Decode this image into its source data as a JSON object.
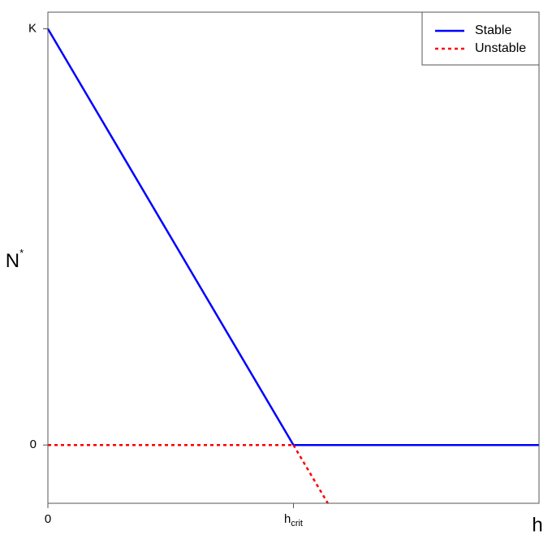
{
  "chart_data": {
    "type": "line",
    "title": "",
    "xlabel": "h",
    "ylabel": "N",
    "ylabel_superscript": "*",
    "xlim": [
      0,
      2
    ],
    "ylim": [
      -0.14,
      1.04
    ],
    "x_ticks": [
      {
        "value": 0,
        "label": "0",
        "subscript": ""
      },
      {
        "value": 1,
        "label": "h",
        "subscript": "crit"
      }
    ],
    "y_ticks": [
      {
        "value": 0,
        "label": "0"
      },
      {
        "value": 1,
        "label": "K"
      }
    ],
    "grid": false,
    "legend_position": "top-right",
    "series": [
      {
        "name": "Stable",
        "color": "#0000ff",
        "style": "solid",
        "segments": [
          [
            [
              0,
              1
            ],
            [
              1,
              0
            ]
          ],
          [
            [
              1,
              0
            ],
            [
              2,
              0
            ]
          ]
        ]
      },
      {
        "name": "Unstable",
        "color": "#ff0000",
        "style": "dashed",
        "segments": [
          [
            [
              0,
              0
            ],
            [
              1,
              0
            ]
          ],
          [
            [
              1,
              0
            ],
            [
              1.14,
              -0.14
            ]
          ]
        ]
      }
    ]
  }
}
